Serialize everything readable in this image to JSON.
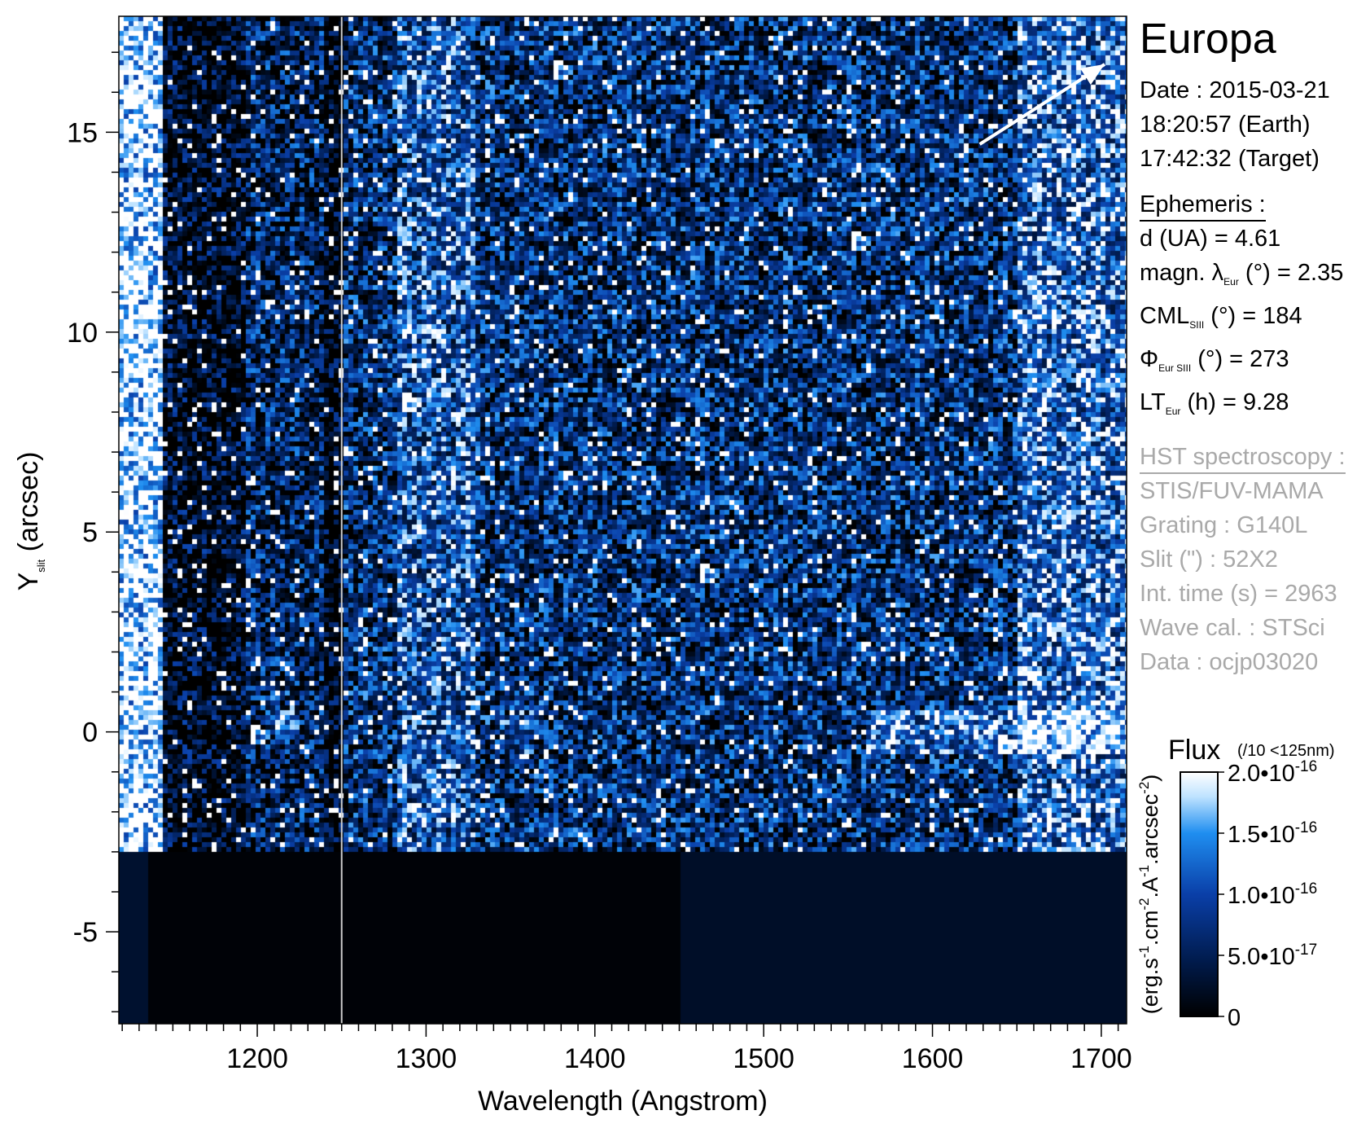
{
  "chart_data": {
    "type": "heatmap",
    "title": "",
    "xlabel": "Wavelength (Angstrom)",
    "ylabel": {
      "main": "Y",
      "sub": "slit",
      "rest": " (arcsec)"
    },
    "xlim": [
      1118,
      1715
    ],
    "ylim": [
      -7.3,
      17.9
    ],
    "x_ticks": [
      1200,
      1300,
      1400,
      1500,
      1600,
      1700
    ],
    "x_tick_labels": [
      "1200",
      "1300",
      "1400",
      "1500",
      "1600",
      "1700"
    ],
    "y_ticks": [
      -5,
      0,
      5,
      10,
      15
    ],
    "y_tick_labels": [
      "-5",
      "0",
      "5",
      "10",
      "15"
    ],
    "grid": false,
    "features": {
      "saturated_band_x": [
        1118,
        1145
      ],
      "lyman_alpha_band_x": [
        1192,
        1240
      ],
      "oxygen_band_x": [
        1282,
        1328
      ],
      "detector_gap_x": 1250,
      "data_floor_y": -3.0,
      "target_trace_y": 0,
      "emission_blobs": [
        {
          "x": 1215,
          "y": 0.3
        },
        {
          "x": 1355,
          "y": 0.0
        }
      ],
      "direction_arrow": {
        "from": [
          1628,
          14.7
        ],
        "to": [
          1702,
          16.7
        ]
      }
    },
    "colorbar": {
      "label": "Flux",
      "note": "(/10 <125nm)",
      "unit_label": "(erg.s-1.cm-2.A-1.arcsec-2)",
      "unit_parts": [
        "(erg.s",
        "-1",
        ".cm",
        "-2",
        ".A",
        "-1",
        ".arcsec",
        "-2",
        ")"
      ],
      "range": [
        0,
        2e-16
      ],
      "ticks": [
        0,
        5e-17,
        1e-16,
        1.5e-16,
        2e-16
      ],
      "tick_labels": [
        {
          "mant": "0",
          "exp": ""
        },
        {
          "mant": "5.0•10",
          "exp": "-17"
        },
        {
          "mant": "1.0•10",
          "exp": "-16"
        },
        {
          "mant": "1.5•10",
          "exp": "-16"
        },
        {
          "mant": "2.0•10",
          "exp": "-16"
        }
      ],
      "colors": [
        "#000000",
        "#001a4a",
        "#0a3fa8",
        "#1f8ef0",
        "#bfe3ff",
        "#ffffff"
      ]
    }
  },
  "info": {
    "target": "Europa",
    "date": "Date : 2015-03-21",
    "time_earth": "18:20:57 (Earth)",
    "time_target": "17:42:32 (Target)",
    "ephemeris_header": "Ephemeris :",
    "d_ua": "d (UA)     = 4.61",
    "magn_a": "magn. λ",
    "magn_sub": "Eur",
    "magn_b": " (°)  = 2.35",
    "cml_a": "CML",
    "cml_sub": "SIII",
    "cml_b": " (°) = 184",
    "phi_a": "Φ",
    "phi_sub": "Eur SIII",
    "phi_b": " (°) = 273",
    "lt_a": "LT",
    "lt_sub": "Eur",
    "lt_b": " (h) = 9.28",
    "hst_header": "HST spectroscopy :",
    "instrument": "STIS/FUV-MAMA",
    "grating": "Grating : G140L",
    "slit": "Slit (\") : 52X2",
    "int_time": "Int. time (s) = 2963",
    "wave_cal": "Wave cal. : STSci",
    "data_id": "Data : ocjp03020"
  }
}
